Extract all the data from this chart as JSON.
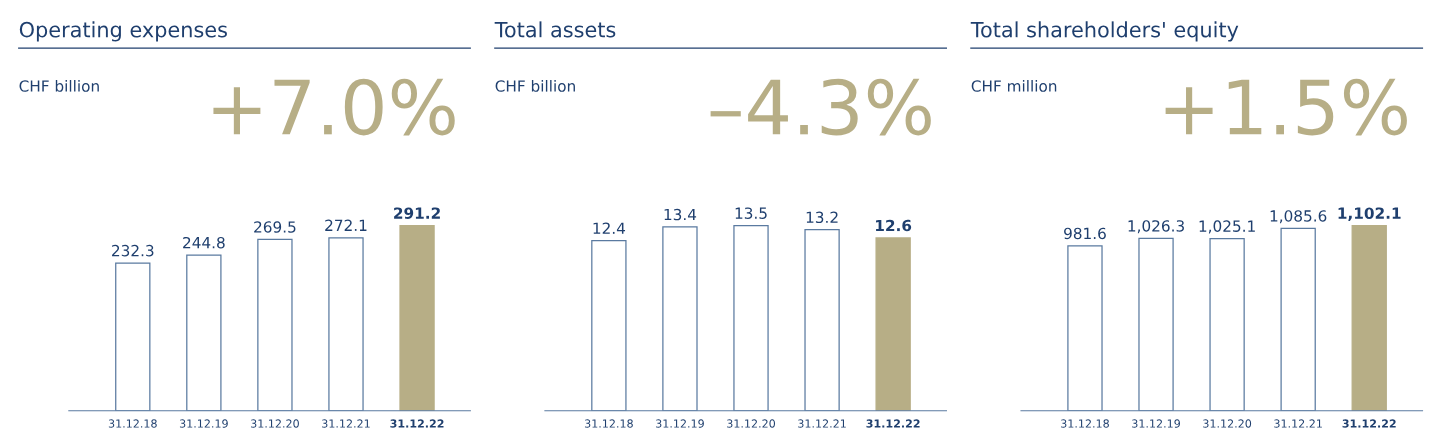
{
  "chart_data": [
    {
      "type": "bar",
      "title": "Operating expenses",
      "subtitle": "CHF billion",
      "annotations": [
        "+7.0%"
      ],
      "categories": [
        "31.12.18",
        "31.12.19",
        "31.12.20",
        "31.12.21",
        "31.12.22"
      ],
      "values": [
        232.3,
        244.8,
        269.5,
        272.1,
        291.2
      ],
      "colors": [
        "#5a7aa0",
        "#5a7aa0",
        "#5a7aa0",
        "#5a7aa0",
        "#b7ae86"
      ],
      "data_labels": true,
      "grid": false,
      "legend": false
    },
    {
      "type": "bar",
      "title": "Total assets",
      "subtitle": "CHF billion",
      "annotations": [
        "–4.3%"
      ],
      "categories": [
        "31.12.18",
        "31.12.19",
        "31.12.20",
        "31.12.21",
        "31.12.22"
      ],
      "values": [
        12.4,
        13.4,
        13.5,
        13.2,
        12.6
      ],
      "colors": [
        "#5a7aa0",
        "#5a7aa0",
        "#5a7aa0",
        "#5a7aa0",
        "#b7ae86"
      ],
      "data_labels": true,
      "grid": false,
      "legend": false
    },
    {
      "type": "bar",
      "title": "Total shareholders' equity",
      "subtitle": "CHF million",
      "annotations": [
        "+1.5%"
      ],
      "categories": [
        "31.12.18",
        "31.12.19",
        "31.12.20",
        "31.12.21",
        "31.12.22"
      ],
      "values": [
        981.6,
        1026.3,
        1025.1,
        1085.6,
        1102.1
      ],
      "value_labels": [
        "981.6",
        "1,026.3",
        "1,025.1",
        "1,085.6",
        "1,102.1"
      ],
      "colors": [
        "#5a7aa0",
        "#5a7aa0",
        "#5a7aa0",
        "#5a7aa0",
        "#b7ae86"
      ],
      "grid": false,
      "legend": false
    }
  ]
}
